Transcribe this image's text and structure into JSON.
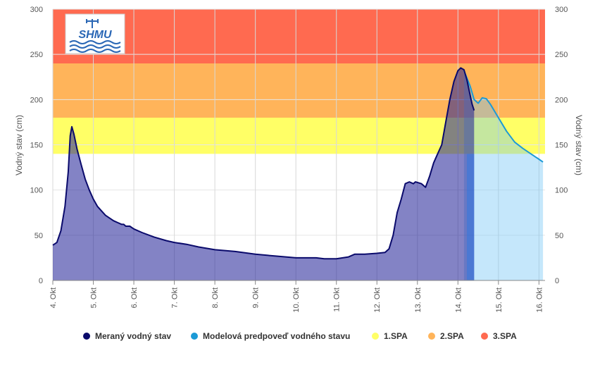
{
  "chart_data": {
    "type": "area",
    "logo": {
      "text": "SHMU"
    },
    "ylabel_left": "Vodný stav (cm)",
    "ylabel_right": "Vodný stav (cm)",
    "ylim": [
      0,
      300
    ],
    "yticks": [
      0,
      50,
      100,
      150,
      200,
      250,
      300
    ],
    "xlim": [
      4.0,
      16.15
    ],
    "x_ticks": [
      {
        "x": 4,
        "label": "4. Okt"
      },
      {
        "x": 5,
        "label": "5. Okt"
      },
      {
        "x": 6,
        "label": "6. Okt"
      },
      {
        "x": 7,
        "label": "7. Okt"
      },
      {
        "x": 8,
        "label": "8. Okt"
      },
      {
        "x": 9,
        "label": "9. Okt"
      },
      {
        "x": 10,
        "label": "10. Okt"
      },
      {
        "x": 11,
        "label": "11. Okt"
      },
      {
        "x": 12,
        "label": "12. Okt"
      },
      {
        "x": 13,
        "label": "13. Okt"
      },
      {
        "x": 14,
        "label": "14. Okt"
      },
      {
        "x": 15,
        "label": "15. Okt"
      },
      {
        "x": 16,
        "label": "16. Okt"
      }
    ],
    "bands": [
      {
        "name": "1.SPA",
        "from": 140,
        "to": 180,
        "color": "#ffff66"
      },
      {
        "name": "2.SPA",
        "from": 180,
        "to": 240,
        "color": "#ffb45a"
      },
      {
        "name": "3.SPA",
        "from": 240,
        "to": 300,
        "color": "#ff6a50"
      }
    ],
    "forecast_start": 14.4,
    "series": [
      {
        "name": "Meraný vodný stav",
        "color": "#0a0a6b",
        "fill": "rgba(30,30,150,0.55)",
        "points": [
          [
            4.0,
            39
          ],
          [
            4.1,
            42
          ],
          [
            4.2,
            55
          ],
          [
            4.3,
            82
          ],
          [
            4.38,
            120
          ],
          [
            4.43,
            160
          ],
          [
            4.47,
            170
          ],
          [
            4.52,
            162
          ],
          [
            4.6,
            145
          ],
          [
            4.7,
            128
          ],
          [
            4.8,
            112
          ],
          [
            4.9,
            100
          ],
          [
            5.0,
            90
          ],
          [
            5.1,
            82
          ],
          [
            5.2,
            77
          ],
          [
            5.3,
            72
          ],
          [
            5.4,
            69
          ],
          [
            5.5,
            66
          ],
          [
            5.6,
            64
          ],
          [
            5.7,
            62
          ],
          [
            5.75,
            62
          ],
          [
            5.8,
            60
          ],
          [
            5.9,
            60
          ],
          [
            6.0,
            57
          ],
          [
            6.2,
            53
          ],
          [
            6.5,
            48
          ],
          [
            6.8,
            44
          ],
          [
            7.0,
            42
          ],
          [
            7.3,
            40
          ],
          [
            7.6,
            37
          ],
          [
            8.0,
            34
          ],
          [
            8.5,
            32
          ],
          [
            9.0,
            29
          ],
          [
            9.5,
            27
          ],
          [
            10.0,
            25
          ],
          [
            10.5,
            25
          ],
          [
            10.7,
            24
          ],
          [
            11.0,
            24
          ],
          [
            11.3,
            26
          ],
          [
            11.45,
            29
          ],
          [
            11.7,
            29
          ],
          [
            12.0,
            30
          ],
          [
            12.2,
            31
          ],
          [
            12.3,
            35
          ],
          [
            12.4,
            50
          ],
          [
            12.5,
            75
          ],
          [
            12.6,
            90
          ],
          [
            12.7,
            107
          ],
          [
            12.8,
            109
          ],
          [
            12.9,
            107
          ],
          [
            12.95,
            109
          ],
          [
            13.1,
            107
          ],
          [
            13.2,
            103
          ],
          [
            13.3,
            115
          ],
          [
            13.4,
            130
          ],
          [
            13.5,
            140
          ],
          [
            13.6,
            150
          ],
          [
            13.7,
            175
          ],
          [
            13.8,
            200
          ],
          [
            13.9,
            220
          ],
          [
            14.0,
            232
          ],
          [
            14.07,
            235
          ],
          [
            14.15,
            233
          ],
          [
            14.22,
            222
          ],
          [
            14.3,
            205
          ],
          [
            14.35,
            195
          ],
          [
            14.4,
            188
          ]
        ]
      },
      {
        "name": "Modelová predpoveď vodného stavu",
        "color": "#1c9ad6",
        "fill": "rgba(110,195,245,0.40)",
        "points": [
          [
            14.15,
            232
          ],
          [
            14.3,
            215
          ],
          [
            14.4,
            200
          ],
          [
            14.5,
            196
          ],
          [
            14.6,
            202
          ],
          [
            14.7,
            201
          ],
          [
            14.8,
            195
          ],
          [
            15.0,
            180
          ],
          [
            15.2,
            165
          ],
          [
            15.4,
            153
          ],
          [
            15.6,
            146
          ],
          [
            15.8,
            140
          ],
          [
            16.0,
            134
          ],
          [
            16.1,
            131
          ]
        ]
      }
    ],
    "legend": [
      {
        "label": "Meraný vodný stav",
        "color": "#0a0a6b"
      },
      {
        "label": "Modelová predpoveď vodného stavu",
        "color": "#1c9ad6"
      },
      {
        "label": "1.SPA",
        "color": "#ffff66"
      },
      {
        "label": "2.SPA",
        "color": "#ffb45a"
      },
      {
        "label": "3.SPA",
        "color": "#ff6a50"
      }
    ]
  }
}
